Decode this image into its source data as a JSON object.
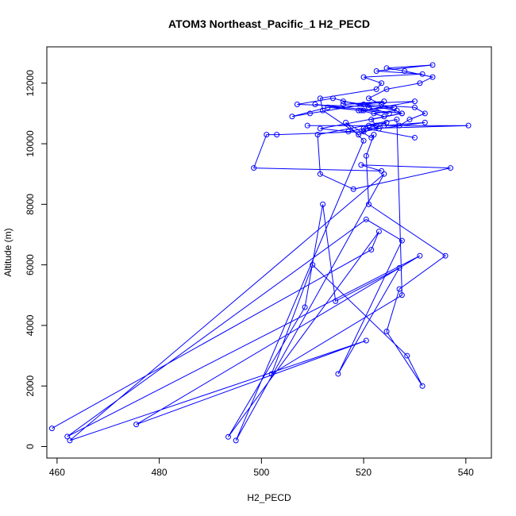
{
  "chart_data": {
    "type": "line",
    "title": "ATOM3 Northeast_Pacific_1 H2_PECD",
    "xlabel": "H2_PECD",
    "ylabel": "Altitude (m)",
    "xlim": [
      458,
      545
    ],
    "ylim": [
      -380,
      13200
    ],
    "xticks": [
      460,
      480,
      500,
      520,
      540
    ],
    "yticks": [
      0,
      2000,
      4000,
      6000,
      8000,
      10000,
      12000
    ],
    "color": "#0000ff",
    "grid": false,
    "series": [
      {
        "x": [
          459,
          521.5,
          523,
          493.5,
          508.5,
          512,
          514.5,
          527,
          515,
          527.5,
          520.5,
          462,
          531,
          475.5,
          520.5,
          462.5,
          524,
          495,
          520,
          516.5,
          521.5,
          522,
          520.5,
          521,
          536,
          527,
          524.5,
          531.5,
          528.5,
          510,
          502,
          527.5,
          526.5,
          511,
          511.5,
          518,
          537,
          519.5,
          523.5,
          498.5,
          501,
          503,
          520,
          523,
          532,
          524,
          509,
          540.5,
          520,
          517,
          511.5,
          527.5,
          510.5,
          519,
          526,
          507,
          514,
          521,
          525,
          520,
          530,
          516,
          524,
          509.5,
          506,
          513,
          519.5,
          524,
          522,
          526.5,
          516,
          520,
          530,
          532,
          529,
          527,
          521,
          524.5,
          519,
          512,
          511.5,
          522.5,
          523.5,
          520,
          531.5,
          522.5,
          533.5,
          524.5,
          528,
          533.5,
          531,
          524.5,
          521,
          523.5,
          527.5,
          521.5,
          522.5,
          520.5,
          530
        ],
        "y": [
          600,
          6500,
          7100,
          320,
          4600,
          8000,
          4800,
          5900,
          2400,
          6800,
          7500,
          330,
          6300,
          730,
          3500,
          200,
          9000,
          200,
          10100,
          10700,
          10200,
          10300,
          9600,
          8000,
          6300,
          5200,
          3800,
          2000,
          3000,
          6000,
          2400,
          5000,
          10800,
          10300,
          9000,
          8500,
          9200,
          9300,
          9100,
          9200,
          10300,
          10300,
          10400,
          10500,
          10700,
          10600,
          10600,
          10600,
          10500,
          10400,
          10500,
          11000,
          11300,
          11100,
          11200,
          11300,
          11500,
          11200,
          11000,
          11100,
          11400,
          11300,
          11400,
          11000,
          10900,
          11200,
          11100,
          10900,
          11000,
          11100,
          11400,
          11300,
          11200,
          11000,
          10800,
          10600,
          10600,
          10700,
          10300,
          11100,
          11500,
          11800,
          12000,
          12200,
          12300,
          12400,
          12600,
          12500,
          12400,
          12200,
          12000,
          11800,
          11500,
          11300,
          11000,
          10800,
          10600,
          10500,
          10200
        ]
      }
    ]
  }
}
